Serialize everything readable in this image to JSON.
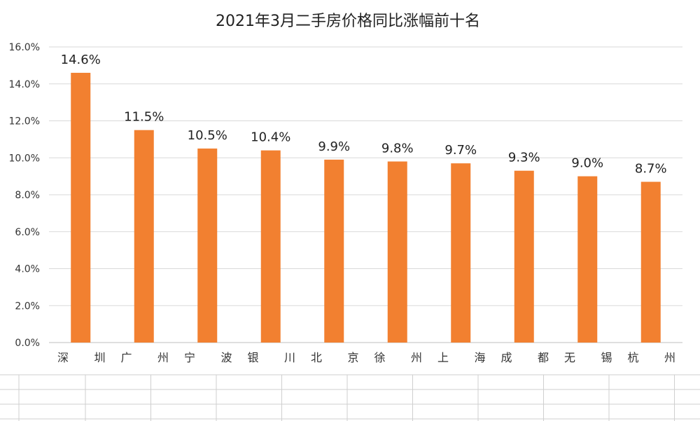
{
  "chart_data": {
    "type": "bar",
    "title": "2021年3月二手房价格同比涨幅前十名",
    "categories": [
      "深　　圳",
      "广　　州",
      "宁　　波",
      "银　　川",
      "北　　京",
      "徐　　州",
      "上　　海",
      "成　　都",
      "无　　锡",
      "杭　　州"
    ],
    "category_parts": [
      [
        "深",
        "圳"
      ],
      [
        "广",
        "州"
      ],
      [
        "宁",
        "波"
      ],
      [
        "银",
        "川"
      ],
      [
        "北",
        "京"
      ],
      [
        "徐",
        "州"
      ],
      [
        "上",
        "海"
      ],
      [
        "成",
        "都"
      ],
      [
        "无",
        "锡"
      ],
      [
        "杭",
        "州"
      ]
    ],
    "values": [
      14.6,
      11.5,
      10.5,
      10.4,
      9.9,
      9.8,
      9.7,
      9.3,
      9.0,
      8.7
    ],
    "data_labels": [
      "14.6%",
      "11.5%",
      "10.5%",
      "10.4%",
      "9.9%",
      "9.8%",
      "9.7%",
      "9.3%",
      "9.0%",
      "8.7%"
    ],
    "y_ticks": [
      0,
      2,
      4,
      6,
      8,
      10,
      12,
      14,
      16
    ],
    "y_tick_labels": [
      "0.0%",
      "2.0%",
      "4.0%",
      "6.0%",
      "8.0%",
      "10.0%",
      "12.0%",
      "14.0%",
      "16.0%"
    ],
    "ylim": [
      0,
      16
    ],
    "xlabel": "",
    "ylabel": "",
    "grid": true,
    "bar_color": "#F28030"
  }
}
